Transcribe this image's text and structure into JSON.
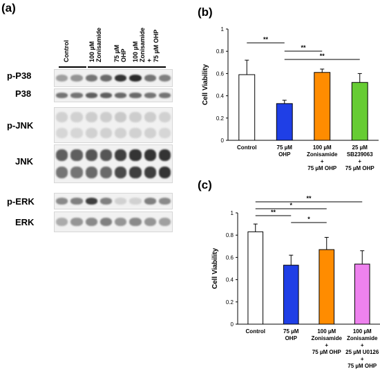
{
  "panel_a": {
    "letter": "(a)",
    "lanes": [
      "Control",
      "100 µM Zonisamide",
      "75 µM OHP",
      "100 µM Zonisamide + 75 µM OHP"
    ],
    "lane_lines": [
      "Control",
      "100 µM\nZonisamide",
      "75 µM\nOHP",
      "100 µM\nZonisamide\n+\n75 µM OHP"
    ],
    "blots": [
      {
        "label": "p-P38",
        "bands": 1,
        "intensity": [
          0.35,
          0.4,
          0.55,
          0.6,
          0.85,
          0.9,
          0.55,
          0.5
        ],
        "intensity2": []
      },
      {
        "label": "P38",
        "bands": 1,
        "intensity": [
          0.55,
          0.55,
          0.65,
          0.65,
          0.6,
          0.6,
          0.55,
          0.55
        ],
        "intensity2": []
      },
      {
        "label": "p-JNK",
        "bands": 2,
        "intensity": [
          0.12,
          0.12,
          0.14,
          0.14,
          0.16,
          0.14,
          0.14,
          0.12
        ],
        "intensity2": [
          0.1,
          0.1,
          0.12,
          0.12,
          0.12,
          0.12,
          0.12,
          0.1
        ]
      },
      {
        "label": "JNK",
        "bands": 2,
        "intensity": [
          0.65,
          0.65,
          0.7,
          0.7,
          0.8,
          0.85,
          0.85,
          0.85
        ],
        "intensity2": [
          0.55,
          0.55,
          0.6,
          0.6,
          0.75,
          0.8,
          0.8,
          0.85
        ]
      },
      {
        "label": "p-ERK",
        "bands": 1,
        "intensity": [
          0.45,
          0.5,
          0.8,
          0.5,
          0.12,
          0.12,
          0.5,
          0.45
        ],
        "intensity2": []
      },
      {
        "label": "ERK",
        "bands": 1,
        "intensity": [
          0.3,
          0.4,
          0.45,
          0.5,
          0.4,
          0.45,
          0.4,
          0.35
        ],
        "intensity2": []
      }
    ]
  },
  "chart_data": [
    {
      "panel": "(b)",
      "type": "bar",
      "ylabel": "Cell Viability",
      "ylim": [
        0,
        1
      ],
      "yticks": [
        "0",
        "0.2",
        "0.4",
        "0.6",
        "0.8",
        "1"
      ],
      "categories": [
        "Control",
        "75 µM OHP",
        "100 µM Zonisamide + 75 µM OHP",
        "25 µM SB239063 + 75 µM OHP"
      ],
      "category_lines": [
        [
          "Control"
        ],
        [
          "75 µM",
          "OHP"
        ],
        [
          "100 µM",
          "Zonisamide",
          "+",
          "75 µM OHP"
        ],
        [
          "25 µM",
          "SB239063",
          "+",
          "75 µM OHP"
        ]
      ],
      "values": [
        0.59,
        0.33,
        0.61,
        0.52
      ],
      "errors": [
        0.13,
        0.03,
        0.03,
        0.08
      ],
      "colors": [
        "#ffffff",
        "#1f3fe6",
        "#ff8c00",
        "#66cc33"
      ],
      "significance": [
        {
          "from": 0,
          "to": 1,
          "label": "**"
        },
        {
          "from": 1,
          "to": 2,
          "label": "**"
        },
        {
          "from": 1,
          "to": 3,
          "label": "**"
        }
      ]
    },
    {
      "panel": "(c)",
      "type": "bar",
      "ylabel": "Cell Viability",
      "ylim": [
        0,
        1
      ],
      "yticks": [
        "0",
        "0.2",
        "0.4",
        "0.6",
        "0.8",
        "1"
      ],
      "categories": [
        "Control",
        "75 µM OHP",
        "100 µM Zonisamide + 75 µM OHP",
        "100 µM Zonisamide + 25 µM U0126 + 75 µM OHP"
      ],
      "category_lines": [
        [
          "Control"
        ],
        [
          "75 µM",
          "OHP"
        ],
        [
          "100 µM",
          "Zonisamide",
          "+",
          "75 µM OHP"
        ],
        [
          "100 µM",
          "Zonisamide",
          "+",
          "25 µM U0126",
          "+",
          "75 µM OHP"
        ]
      ],
      "values": [
        0.83,
        0.53,
        0.67,
        0.54
      ],
      "errors": [
        0.07,
        0.09,
        0.11,
        0.12
      ],
      "colors": [
        "#ffffff",
        "#1f3fe6",
        "#ff8c00",
        "#ee82ee"
      ],
      "significance": [
        {
          "from": 0,
          "to": 3,
          "label": "**"
        },
        {
          "from": 0,
          "to": 2,
          "label": "*"
        },
        {
          "from": 0,
          "to": 1,
          "label": "**"
        },
        {
          "from": 1,
          "to": 2,
          "label": "*"
        }
      ]
    }
  ]
}
